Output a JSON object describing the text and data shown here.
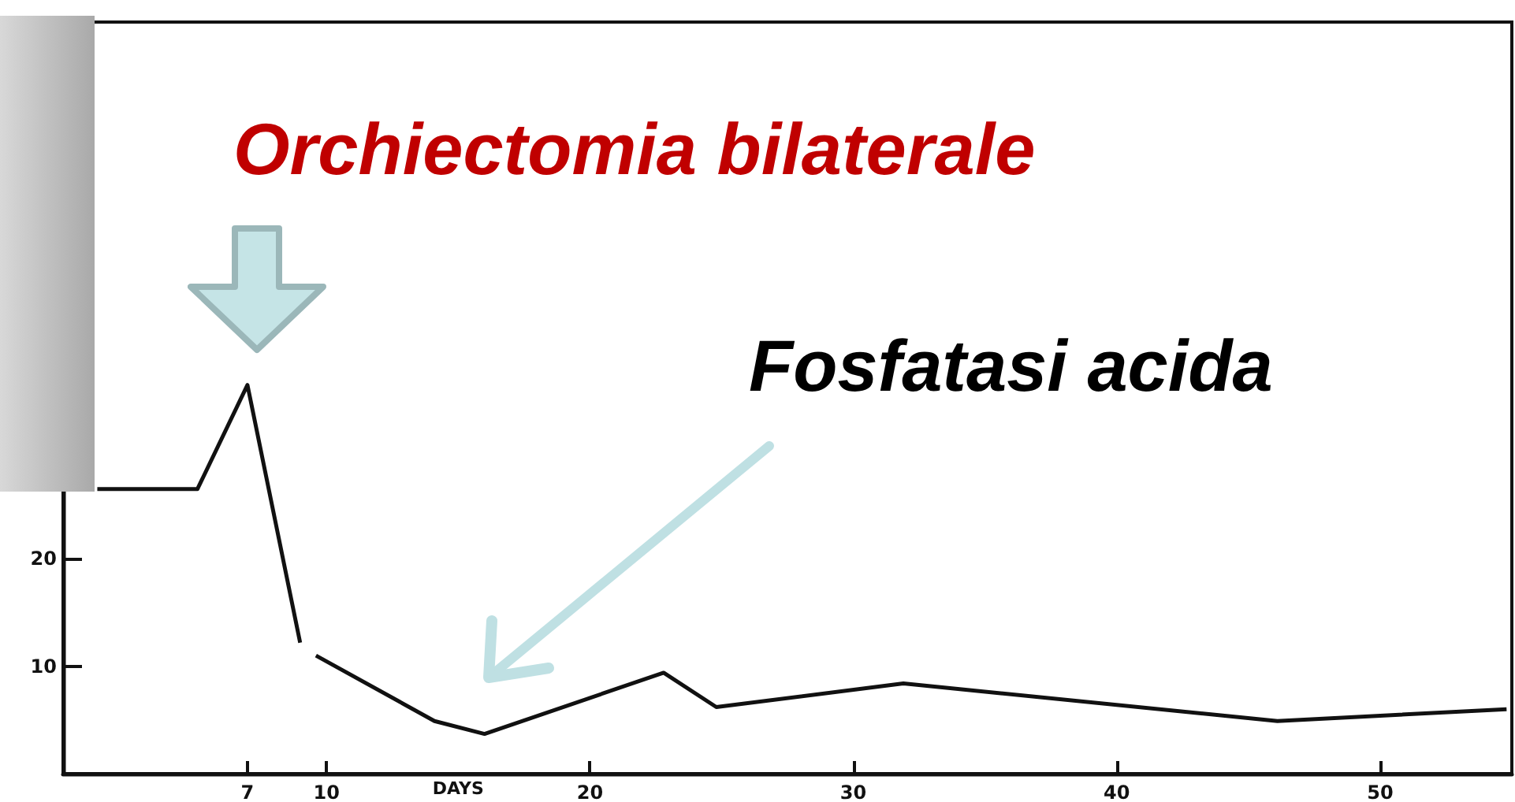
{
  "chart_data": {
    "type": "line",
    "xlabel": "DAYS",
    "x": [
      1.3,
      5.1,
      7,
      9.0,
      9.3,
      9.6,
      14.1,
      16,
      22.8,
      24.8,
      31.9,
      46.1,
      54.8
    ],
    "series": [
      {
        "color": "#111111",
        "values": [
          26.5,
          26.5,
          36.2,
          12.2,
          null,
          11,
          4.9,
          3.7,
          9.4,
          6.2,
          8.4,
          4.9,
          6.0
        ]
      }
    ],
    "xlim": [
      0,
      55
    ],
    "xticks": [
      7,
      10,
      20,
      30,
      40,
      50
    ],
    "ylim": [
      0,
      70
    ],
    "yticks": [
      10,
      20
    ],
    "grid": false,
    "annotations": [
      {
        "text": "Orchiectomia bilaterale",
        "x": 7,
        "y": 36.2
      },
      "Fosfatasi acida"
    ]
  }
}
